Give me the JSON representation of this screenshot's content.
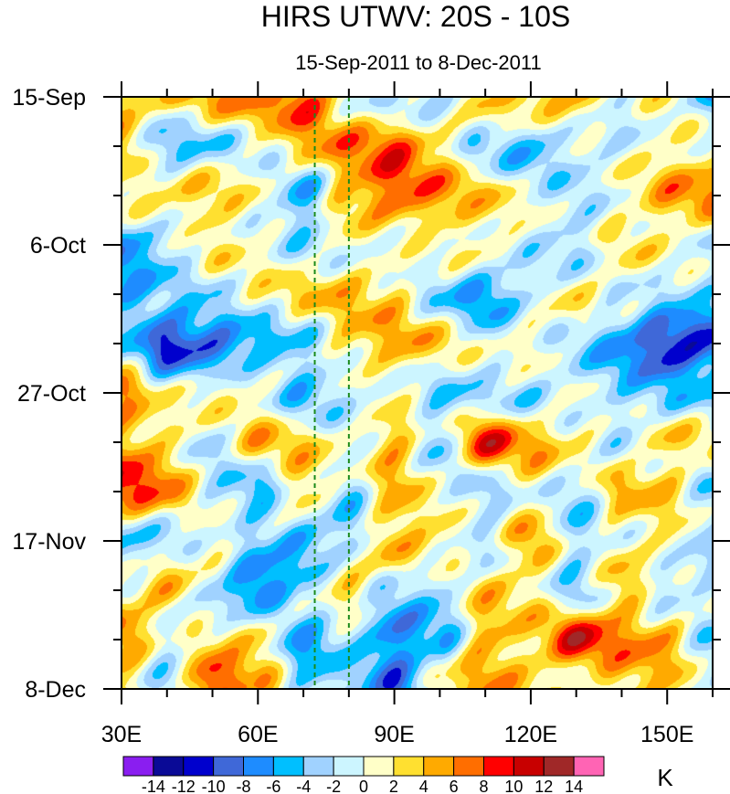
{
  "chart_data": {
    "type": "heatmap",
    "title": "HIRS UTWV: 20S - 10S",
    "subtitle": "15-Sep-2011 to 8-Dec-2011",
    "xlabel": "",
    "ylabel": "",
    "xlim": [
      30,
      160
    ],
    "ylim_days": [
      0,
      84
    ],
    "x_ticks": [
      {
        "value": 30,
        "label": "30E"
      },
      {
        "value": 60,
        "label": "60E"
      },
      {
        "value": 90,
        "label": "90E"
      },
      {
        "value": 120,
        "label": "120E"
      },
      {
        "value": 150,
        "label": "150E"
      }
    ],
    "y_ticks": [
      {
        "day": 0,
        "label": "15-Sep"
      },
      {
        "day": 21,
        "label": "6-Oct"
      },
      {
        "day": 42,
        "label": "27-Oct"
      },
      {
        "day": 63,
        "label": "17-Nov"
      },
      {
        "day": 84,
        "label": "8-Dec"
      }
    ],
    "reference_lines_lon": [
      72.5,
      80
    ],
    "reference_line_color": "#1a8a1a",
    "grid_lon": [
      30,
      40,
      50,
      60,
      70,
      80,
      90,
      100,
      110,
      120,
      130,
      140,
      150,
      160
    ],
    "grid_day": [
      0,
      7,
      14,
      21,
      28,
      35,
      42,
      49,
      56,
      63,
      70,
      77,
      84
    ],
    "values_K": [
      [
        5,
        3,
        5,
        6,
        9,
        1,
        -3,
        -3,
        3,
        5,
        5,
        -1,
        1,
        -6
      ],
      [
        3,
        -5,
        -3,
        0,
        4,
        6,
        8,
        3,
        -3,
        -5,
        -2,
        -1,
        2,
        2
      ],
      [
        3,
        3,
        4,
        0,
        -6,
        5,
        8,
        6,
        3,
        0,
        -2,
        1,
        5,
        6
      ],
      [
        -7,
        -3,
        2,
        1,
        -2,
        0,
        -1,
        1,
        2,
        -1,
        -3,
        2,
        1,
        -1
      ],
      [
        -6,
        -3,
        -2,
        1,
        3,
        4,
        3,
        -3,
        -7,
        -2,
        2,
        0,
        -2,
        -3
      ],
      [
        -2,
        -11,
        -9,
        -6,
        -3,
        3,
        5,
        3,
        -1,
        2,
        -2,
        -7,
        -12,
        -10
      ],
      [
        6,
        0,
        2,
        1,
        -5,
        -2,
        0,
        -3,
        -2,
        -3,
        -1,
        -3,
        -4,
        -3
      ],
      [
        5,
        3,
        -2,
        4,
        3,
        0,
        5,
        -3,
        9,
        5,
        2,
        -1,
        3,
        2
      ],
      [
        10,
        6,
        -2,
        -5,
        4,
        -3,
        4,
        0,
        -3,
        1,
        -3,
        4,
        3,
        -3
      ],
      [
        -5,
        -3,
        2,
        -3,
        -6,
        -3,
        5,
        3,
        -2,
        5,
        -3,
        1,
        2,
        -3
      ],
      [
        2,
        5,
        -3,
        -9,
        -2,
        4,
        -3,
        -3,
        3,
        2,
        -3,
        4,
        -3,
        -1
      ],
      [
        6,
        -2,
        3,
        4,
        -6,
        -3,
        -8,
        -5,
        5,
        3,
        10,
        6,
        5,
        -3
      ],
      [
        3,
        -2,
        9,
        4,
        -3,
        -2,
        -8,
        2,
        5,
        3,
        0,
        4,
        3,
        -2
      ]
    ],
    "colorbar": {
      "unit": "K",
      "levels": [
        -14,
        -12,
        -10,
        -8,
        -6,
        -4,
        -2,
        0,
        2,
        4,
        6,
        8,
        10,
        12,
        14
      ],
      "labels": [
        "-14",
        "-12",
        "-10",
        "-8",
        "-6",
        "-4",
        "-2",
        "0",
        "2",
        "4",
        "6",
        "8",
        "10",
        "12",
        "14"
      ],
      "colors": [
        "#8a1ef0",
        "#0a0a96",
        "#0000cd",
        "#3f68d8",
        "#1e8cff",
        "#00bfff",
        "#a0d2ff",
        "#ccf5ff",
        "#ffffc8",
        "#ffe030",
        "#ffaa00",
        "#ff6e00",
        "#ff0000",
        "#c80000",
        "#a02828",
        "#ff64b4"
      ]
    }
  }
}
